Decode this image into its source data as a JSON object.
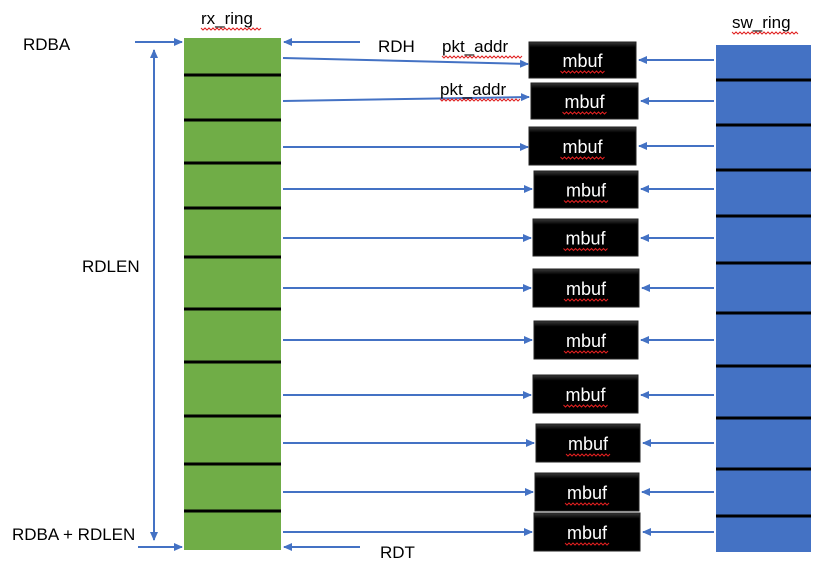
{
  "labels": {
    "rx_ring": "rx_ring",
    "sw_ring": "sw_ring",
    "rdba": "RDBA",
    "rdlen": "RDLEN",
    "rdba_plus_rdlen": "RDBA + RDLEN",
    "rdh": "RDH",
    "rdt": "RDT",
    "pkt_addr_1": "pkt_addr",
    "pkt_addr_2": "pkt_addr"
  },
  "mbuf_label": "mbuf",
  "mbuf_count": 11,
  "colors": {
    "rx_ring_fill": "#70ad47",
    "sw_ring_fill": "#4472c4",
    "arrow": "#4472c4",
    "mbuf_fill": "#000000",
    "divider": "#000000"
  }
}
